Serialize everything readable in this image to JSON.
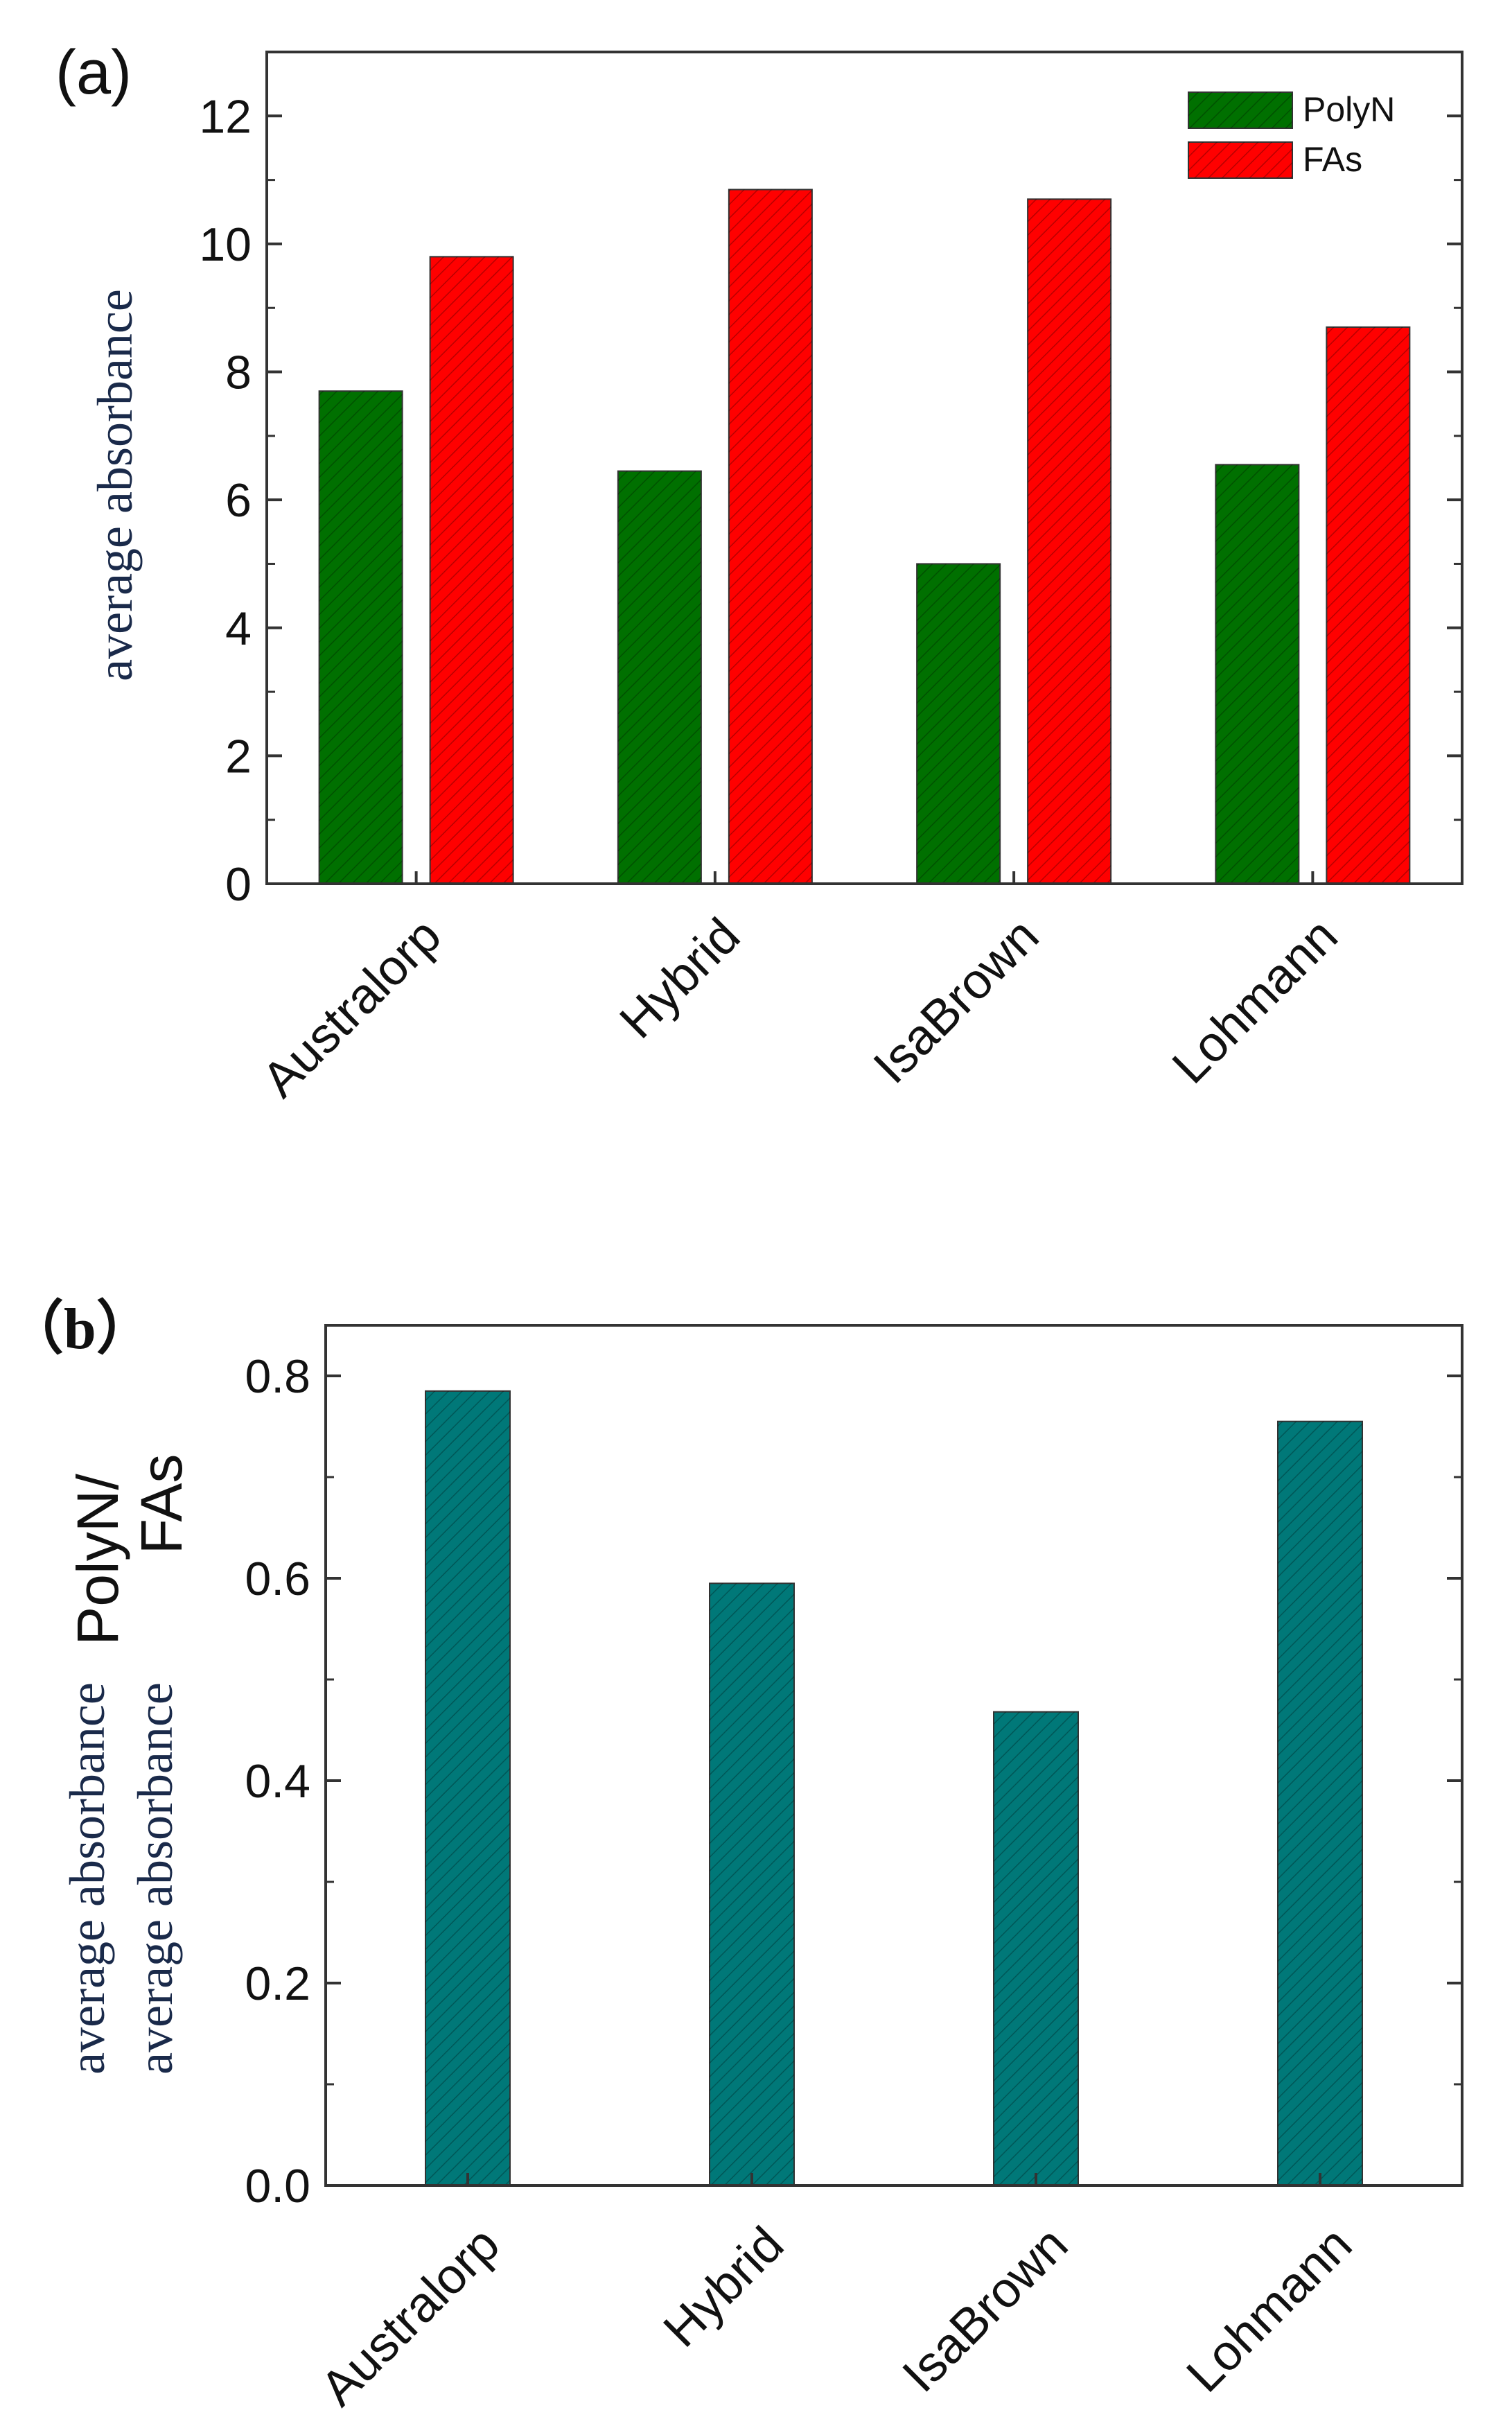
{
  "chart_data": [
    {
      "type": "bar",
      "panel_label": "(a)",
      "title": "",
      "xlabel": "",
      "ylabel": "average absorbance",
      "ylim": [
        0,
        13
      ],
      "yticks": [
        "0",
        "2",
        "4",
        "6",
        "8",
        "10",
        "12"
      ],
      "categories": [
        "Australorp",
        "Hybrid",
        "IsaBrown",
        "Lohmann"
      ],
      "series": [
        {
          "name": "PolyN",
          "color": "#007000",
          "values": [
            7.7,
            6.45,
            5.0,
            6.55
          ]
        },
        {
          "name": "FAs",
          "color": "#ff0000",
          "values": [
            9.8,
            10.85,
            10.7,
            8.7
          ]
        }
      ],
      "legend": "top-right",
      "grid": false
    },
    {
      "type": "bar",
      "panel_label": "（b）",
      "title": "",
      "xlabel": "",
      "ylabel_lines": [
        "average absorbance",
        "average absorbance"
      ],
      "ylabel_fraction": [
        "PolyN/",
        "FAs"
      ],
      "ylim": [
        0,
        0.85
      ],
      "yticks": [
        "0.0",
        "0.2",
        "0.4",
        "0.6",
        "0.8"
      ],
      "categories": [
        "Australorp",
        "Hybrid",
        "IsaBrown",
        "Lohmann"
      ],
      "series": [
        {
          "name": "PolyN/FAs",
          "color": "#007878",
          "values": [
            0.785,
            0.595,
            0.468,
            0.755
          ]
        }
      ],
      "grid": false
    }
  ]
}
